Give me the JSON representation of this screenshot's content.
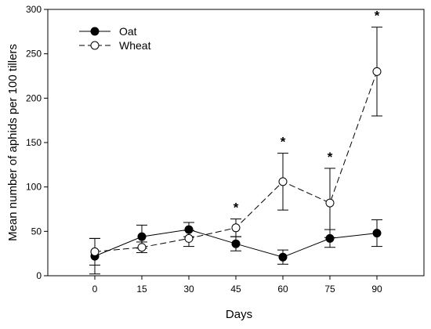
{
  "chart_data": {
    "type": "line",
    "title": "",
    "xlabel": "Days",
    "ylabel": "Mean number of aphids per 100 tillers",
    "x": [
      0,
      15,
      30,
      45,
      60,
      75,
      90
    ],
    "x_ticks": [
      "0",
      "15",
      "30",
      "45",
      "60",
      "75",
      "90"
    ],
    "y_ticks": [
      "0",
      "50",
      "100",
      "150",
      "200",
      "250",
      "300"
    ],
    "xlim": [
      -15,
      105
    ],
    "ylim": [
      0,
      300
    ],
    "grid": false,
    "legend_position": "top-left",
    "series": [
      {
        "name": "Oat",
        "line_style": "solid",
        "marker": "filled-circle",
        "values": [
          22,
          44,
          52,
          36,
          21,
          42,
          48
        ],
        "error": [
          20,
          13,
          8,
          8,
          8,
          10,
          15
        ]
      },
      {
        "name": "Wheat",
        "line_style": "dashed",
        "marker": "open-circle",
        "values": [
          27,
          32,
          42,
          54,
          106,
          82,
          230
        ],
        "error": [
          15,
          6,
          9,
          10,
          32,
          39,
          50
        ]
      }
    ],
    "significance": {
      "symbol": "*",
      "x": [
        45,
        60,
        75,
        90
      ]
    }
  }
}
